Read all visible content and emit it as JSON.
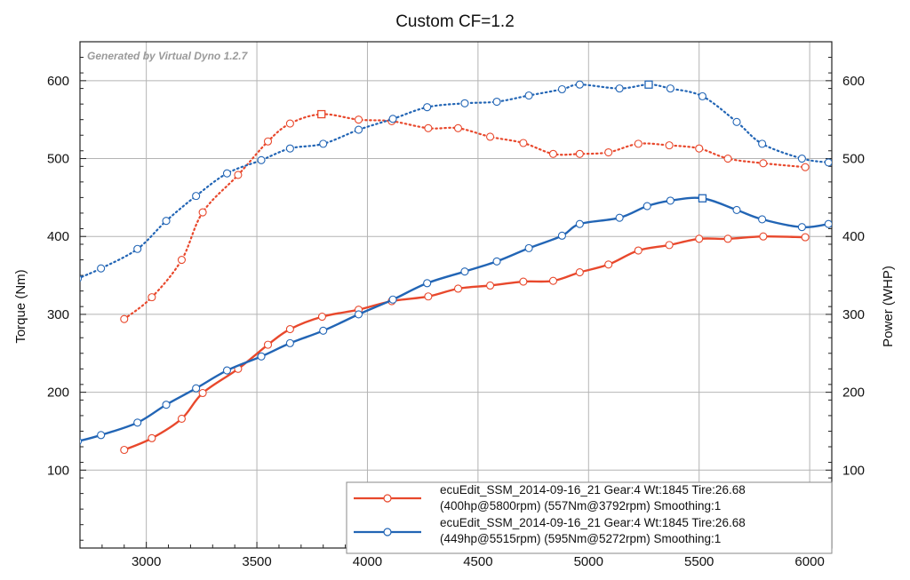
{
  "chart_data": {
    "type": "line",
    "title": "Custom CF=1.2",
    "watermark": "Generated by Virtual Dyno 1.2.7",
    "xlabel": "",
    "ylabel_left": "Torque (Nm)",
    "ylabel_right": "Power (WHP)",
    "xlim": [
      2700,
      6100
    ],
    "ylim": [
      0,
      650
    ],
    "x_ticks": [
      3000,
      3500,
      4000,
      4500,
      5000,
      5500,
      6000
    ],
    "y_ticks": [
      100,
      200,
      300,
      400,
      500,
      600
    ],
    "grid": true,
    "legend_position": "bottom-right",
    "series": [
      {
        "name": "ecuEdit_SSM_2014-09-16_21 Gear:4 Wt:1845 Tire:26.68",
        "name_line2": "(400hp@5800rpm) (557Nm@3792rpm) Smoothing:1",
        "color": "#e8482c",
        "power": {
          "x": [
            2900,
            3025,
            3160,
            3255,
            3415,
            3550,
            3650,
            3795,
            3960,
            4110,
            4275,
            4410,
            4555,
            4705,
            4840,
            4960,
            5090,
            5225,
            5365,
            5500,
            5630,
            5790,
            5980
          ],
          "y": [
            126,
            141,
            166,
            199,
            230,
            261,
            281,
            297,
            306,
            317,
            323,
            333,
            337,
            342,
            343,
            354,
            364,
            382,
            389,
            397,
            397,
            400,
            399
          ]
        },
        "torque": {
          "x": [
            2900,
            3025,
            3160,
            3255,
            3415,
            3550,
            3650,
            3792,
            3960,
            4110,
            4275,
            4410,
            4555,
            4705,
            4840,
            4960,
            5090,
            5225,
            5365,
            5500,
            5630,
            5790,
            5980
          ],
          "y": [
            294,
            322,
            370,
            431,
            479,
            522,
            545,
            557,
            550,
            548,
            539,
            539,
            528,
            520,
            506,
            506,
            508,
            519,
            517,
            513,
            500,
            494,
            489
          ]
        },
        "power_peak_x": 5800,
        "torque_peak_x": 3792
      },
      {
        "name": "ecuEdit_SSM_2014-09-16_21 Gear:4 Wt:1845 Tire:26.68",
        "name_line2": "(449hp@5515rpm) (595Nm@5272rpm) Smoothing:1",
        "color": "#2265b5",
        "power": {
          "x": [
            2690,
            2795,
            2960,
            3090,
            3225,
            3365,
            3520,
            3650,
            3800,
            3960,
            4115,
            4270,
            4440,
            4585,
            4730,
            4880,
            4960,
            5140,
            5265,
            5370,
            5515,
            5670,
            5785,
            5965,
            6085
          ],
          "y": [
            137,
            145,
            161,
            184,
            205,
            228,
            246,
            263,
            279,
            300,
            319,
            340,
            355,
            368,
            385,
            401,
            416,
            424,
            439,
            446,
            449,
            434,
            422,
            412,
            416
          ]
        },
        "torque": {
          "x": [
            2690,
            2795,
            2960,
            3090,
            3225,
            3365,
            3520,
            3650,
            3800,
            3960,
            4115,
            4270,
            4440,
            4585,
            4730,
            4880,
            4960,
            5140,
            5272,
            5370,
            5515,
            5670,
            5785,
            5965,
            6085
          ],
          "y": [
            346,
            359,
            384,
            420,
            452,
            481,
            498,
            513,
            519,
            537,
            551,
            566,
            571,
            573,
            581,
            589,
            595,
            590,
            595,
            590,
            580,
            547,
            519,
            500,
            495
          ]
        },
        "power_peak_x": 5515,
        "torque_peak_x": 5272
      }
    ]
  }
}
